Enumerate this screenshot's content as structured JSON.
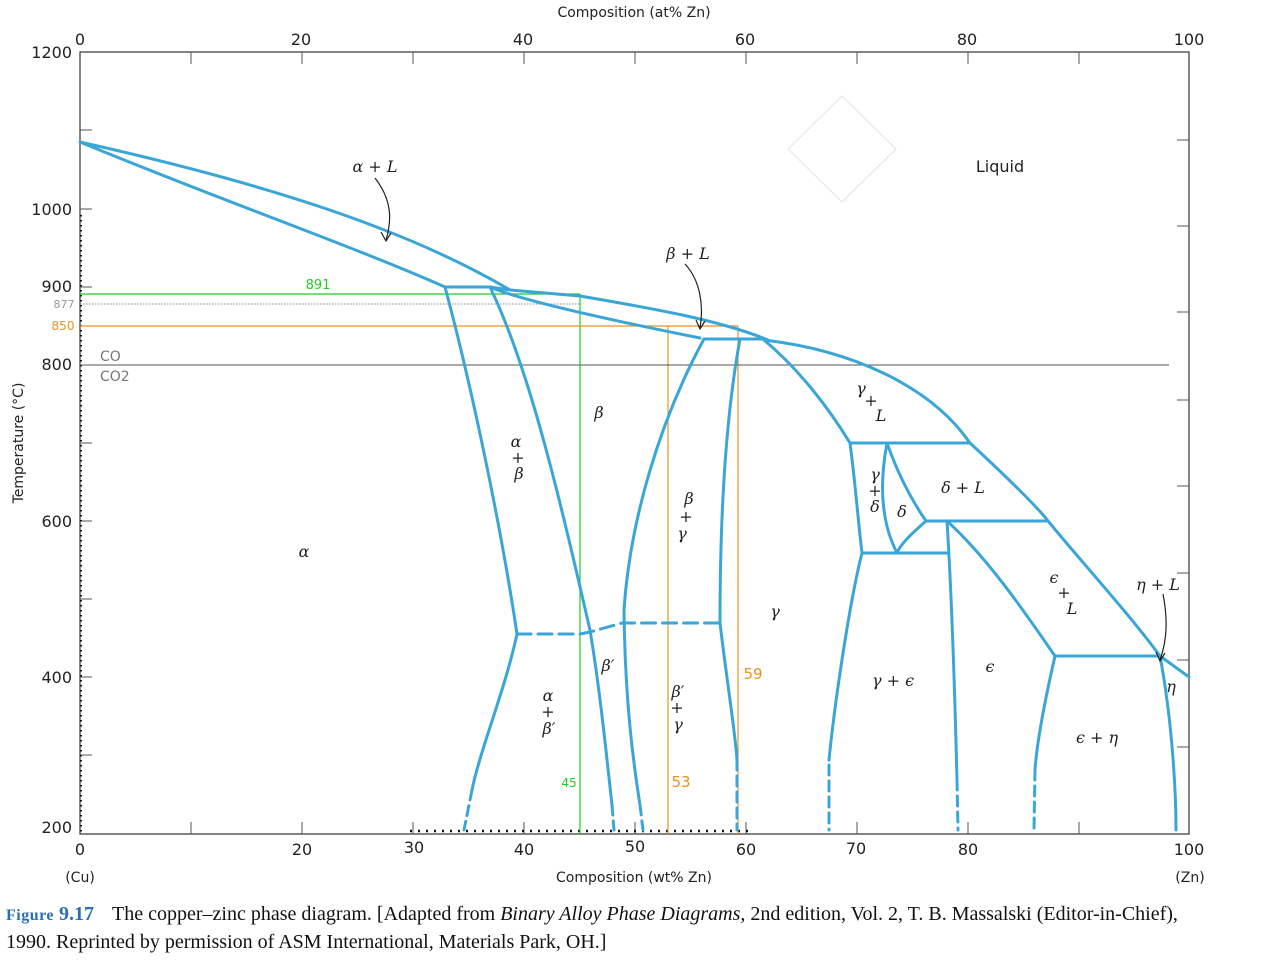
{
  "axes": {
    "top_title": "Composition (at% Zn)",
    "bottom_title": "Composition (wt% Zn)",
    "y_title": "Temperature (°C)",
    "top_ticks": [
      "0",
      "20",
      "40",
      "60",
      "80",
      "100"
    ],
    "bottom_ticks": [
      "0",
      "20",
      "40",
      "60",
      "80",
      "100"
    ],
    "bottom_extra_ticks": [
      "30",
      "50",
      "70"
    ],
    "left_ticks": [
      "1200",
      "1000",
      "900",
      "800",
      "600",
      "400",
      "200"
    ],
    "left_end_cu": "(Cu)",
    "right_end_zn": "(Zn)",
    "ylim": [
      200,
      1200
    ],
    "xlim": [
      0,
      100
    ]
  },
  "phase_labels": {
    "alpha_plus_L": "α + L",
    "liquid": "Liquid",
    "beta_plus_L": "β + L",
    "beta": "β",
    "alpha_plus_beta": [
      "α",
      "+",
      "β"
    ],
    "alpha": "α",
    "beta_plus_gamma": [
      "β",
      "+",
      "γ"
    ],
    "gamma_plus_L": [
      "γ",
      "+",
      "L"
    ],
    "gamma_plus_delta": [
      "γ",
      "+",
      "δ"
    ],
    "delta": "δ",
    "delta_plus_L": "δ + L",
    "gamma": "γ",
    "epsilon_plus_L": [
      "ϵ",
      "+",
      "L"
    ],
    "eta_plus_L": "η + L",
    "beta_prime": "β′",
    "alpha_plus_beta_prime": [
      "α",
      "+",
      "β′"
    ],
    "beta_prime_plus_gamma": [
      "β′",
      "+",
      "γ"
    ],
    "gamma_plus_epsilon": "γ + ϵ",
    "epsilon": "ϵ",
    "eta": "η",
    "epsilon_plus_eta": "ϵ + η"
  },
  "annotations": {
    "temp_891": "891",
    "temp_877": "877",
    "temp_850": "850",
    "co_label": "CO",
    "co2_label": "CO2",
    "comp_45": "45",
    "comp_53": "53",
    "comp_59": "59",
    "colors": {
      "green": "#22cc22",
      "orange": "#e8921e",
      "gray": "#888888",
      "blue": "#3aa6d8"
    }
  },
  "caption": {
    "figure_prefix": "Figure",
    "figure_number": "9.17",
    "text_a": "The copper–zinc phase diagram. [Adapted from ",
    "book": "Binary Alloy Phase Diagrams,",
    "text_b": " 2nd edition, Vol. 2, T. B. Massalski (Editor-in-Chief), 1990. Reprinted by permission of ASM International, Materials Park, OH.]"
  }
}
